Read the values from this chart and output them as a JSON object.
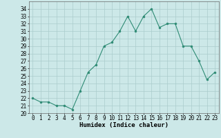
{
  "x": [
    0,
    1,
    2,
    3,
    4,
    5,
    6,
    7,
    8,
    9,
    10,
    11,
    12,
    13,
    14,
    15,
    16,
    17,
    18,
    19,
    20,
    21,
    22,
    23
  ],
  "y": [
    22.0,
    21.5,
    21.5,
    21.0,
    21.0,
    20.5,
    23.0,
    25.5,
    26.5,
    29.0,
    29.5,
    31.0,
    33.0,
    31.0,
    33.0,
    34.0,
    31.5,
    32.0,
    32.0,
    29.0,
    29.0,
    27.0,
    24.5,
    25.5
  ],
  "line_color": "#2e8b74",
  "marker_color": "#2e8b74",
  "bg_color": "#cce8e8",
  "grid_color": "#aacccc",
  "xlabel": "Humidex (Indice chaleur)",
  "xlim": [
    -0.5,
    23.5
  ],
  "ylim": [
    20,
    35
  ],
  "yticks": [
    20,
    21,
    22,
    23,
    24,
    25,
    26,
    27,
    28,
    29,
    30,
    31,
    32,
    33,
    34
  ],
  "xticks": [
    0,
    1,
    2,
    3,
    4,
    5,
    6,
    7,
    8,
    9,
    10,
    11,
    12,
    13,
    14,
    15,
    16,
    17,
    18,
    19,
    20,
    21,
    22,
    23
  ],
  "label_fontsize": 6.5,
  "tick_fontsize": 5.5
}
